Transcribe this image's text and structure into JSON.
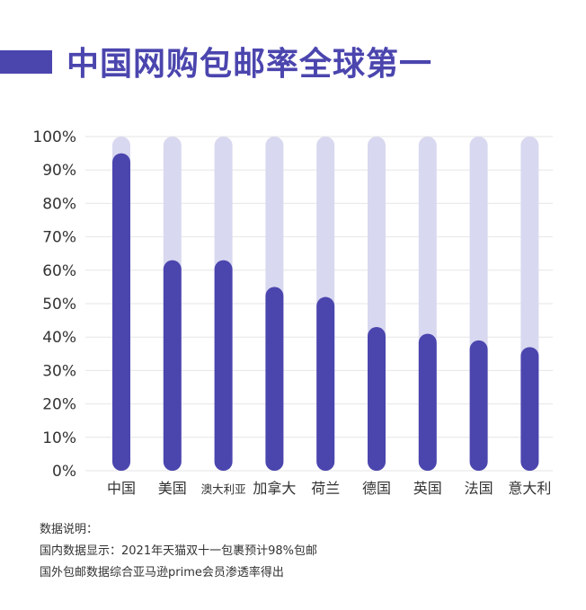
{
  "header": {
    "title": "中国网购包邮率全球第一"
  },
  "notes": {
    "heading": "数据说明：",
    "line1": "国内数据显示：2021年天猫双十一包裹预计98%包邮",
    "line2": "国外包邮数据综合亚马逊prime会员渗透率得出"
  },
  "colors": {
    "bar": "#4b45ae",
    "track": "#d8d8f0",
    "grid": "#e6e6e6",
    "text": "#333333"
  },
  "chart_data": {
    "type": "bar",
    "categories": [
      "中国",
      "美国",
      "澳大利亚",
      "加拿大",
      "荷兰",
      "德国",
      "英国",
      "法国",
      "意大利"
    ],
    "values": [
      95,
      63,
      63,
      55,
      52,
      43,
      41,
      39,
      37
    ],
    "yticks": [
      "0%",
      "10%",
      "20%",
      "30%",
      "40%",
      "50%",
      "60%",
      "70%",
      "80%",
      "90%",
      "100%"
    ],
    "ylim": [
      0,
      100
    ],
    "grid": true,
    "background_bars": true
  }
}
